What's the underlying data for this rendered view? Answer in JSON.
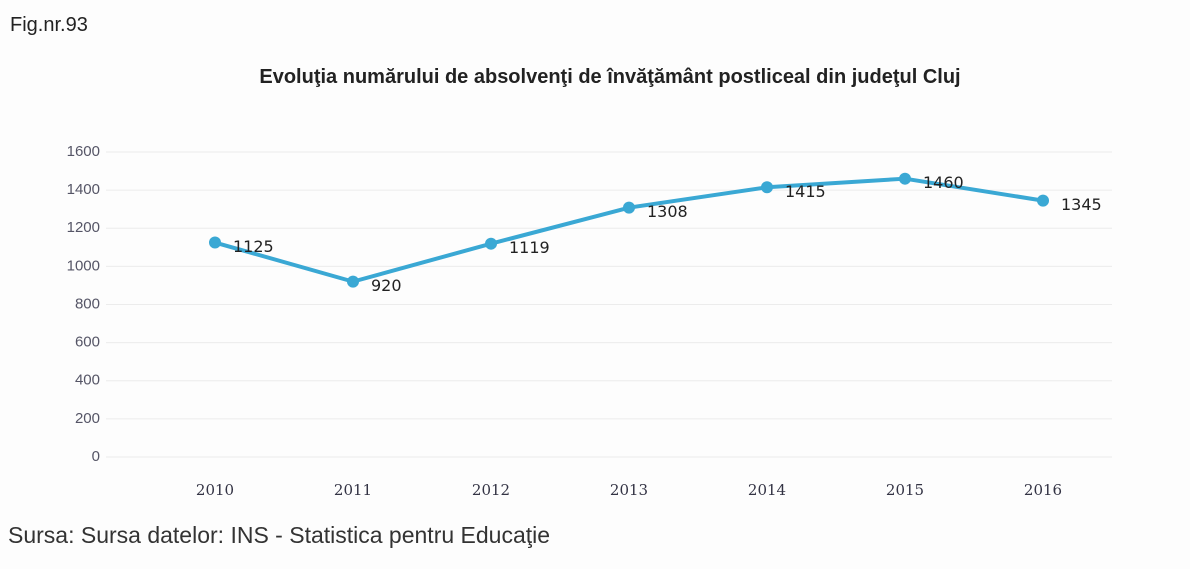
{
  "figure_label": "Fig.nr.93",
  "source": "Sursa: Sursa datelor: INS - Statistica pentru Educaţie",
  "chart_data": {
    "type": "line",
    "title": "Evoluţia numărului de absolvenţi de învăţământ postliceal  din judeţul Cluj",
    "categories": [
      "2010",
      "2011",
      "2012",
      "2013",
      "2014",
      "2015",
      "2016"
    ],
    "values": [
      1125,
      920,
      1119,
      1308,
      1415,
      1460,
      1345
    ],
    "color": "#3aa8d4",
    "ylim": [
      0,
      1600
    ],
    "yticks": [
      0,
      200,
      400,
      600,
      800,
      1000,
      1200,
      1400,
      1600
    ],
    "grid": true
  }
}
